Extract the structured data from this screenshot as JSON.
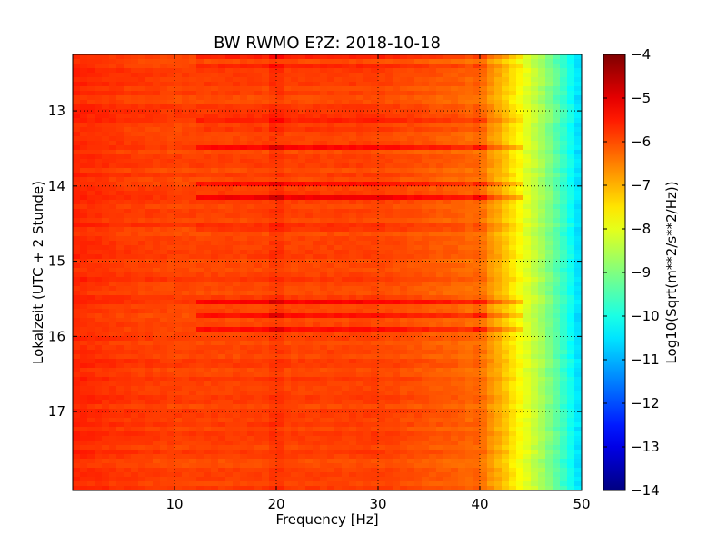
{
  "chart_data": {
    "type": "heatmap",
    "title": "BW RWMO E?Z: 2018-10-18",
    "xlabel": "Frequency [Hz]",
    "ylabel": "Lokalzeit (UTC + 2 Stunde)",
    "xlim": [
      0,
      50
    ],
    "ylim": [
      12.25,
      18.05
    ],
    "x_ticks": [
      10,
      20,
      30,
      40,
      50
    ],
    "y_ticks": [
      13,
      14,
      15,
      16,
      17
    ],
    "y_inverted": true,
    "grid": true,
    "grid_style": "dotted",
    "colorbar": {
      "label": "Log10(Sqrt(m**2/s**2/Hz))",
      "range": [
        -14,
        -4
      ],
      "ticks": [
        -4,
        -5,
        -6,
        -7,
        -8,
        -9,
        -10,
        -11,
        -12,
        -13,
        -14
      ],
      "colormap": "jet"
    },
    "spectrum_profile": {
      "frequency_hz": [
        0,
        2,
        5,
        10,
        20,
        30,
        35,
        38,
        40,
        42,
        44,
        46,
        48,
        49.5,
        50
      ],
      "log10_amplitude": [
        -5.6,
        -5.7,
        -5.8,
        -5.9,
        -5.9,
        -5.9,
        -6.1,
        -6.2,
        -6.4,
        -7.0,
        -7.8,
        -8.6,
        -9.6,
        -10.4,
        -10.8
      ]
    },
    "strong_bands_hour": [
      12.3,
      12.38,
      13.1,
      13.22,
      13.48,
      13.98,
      14.15,
      14.55,
      15.55,
      15.72,
      15.9
    ],
    "strong_line_frequency_hz": [
      20,
      40
    ]
  }
}
